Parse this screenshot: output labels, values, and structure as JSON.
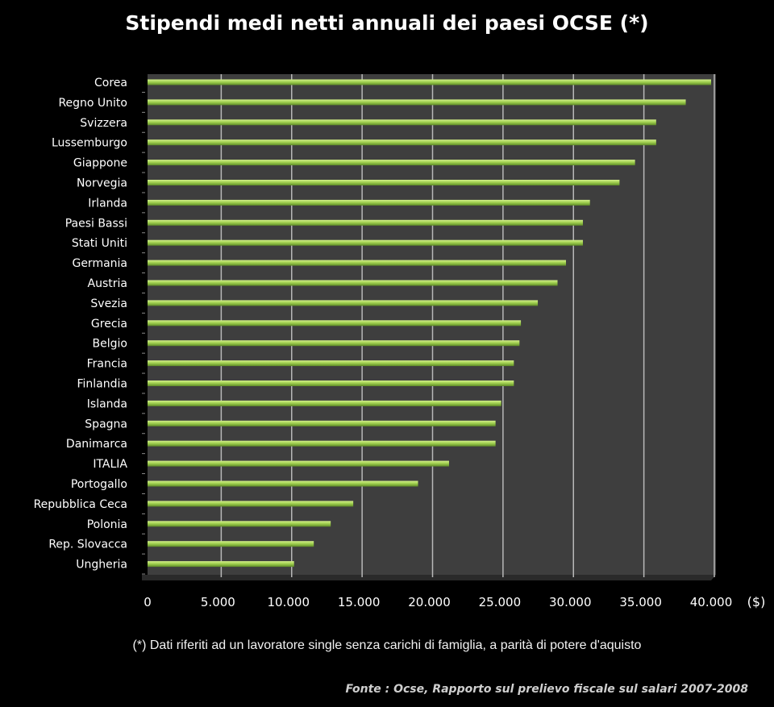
{
  "chart_data": {
    "type": "bar",
    "orientation": "horizontal",
    "title": "Stipendi medi netti annuali dei paesi OCSE  (*)",
    "unit_label": "($)",
    "categories": [
      "Corea",
      "Regno Unito",
      "Svizzera",
      "Lussemburgo",
      "Giappone",
      "Norvegia",
      "Irlanda",
      "Paesi Bassi",
      "Stati Uniti",
      "Germania",
      "Austria",
      "Svezia",
      "Grecia",
      "Belgio",
      "Francia",
      "Finlandia",
      "Islanda",
      "Spagna",
      "Danimarca",
      "ITALIA",
      "Portogallo",
      "Repubblica Ceca",
      "Polonia",
      "Rep. Slovacca",
      "Ungheria"
    ],
    "values": [
      40000,
      38200,
      36100,
      36100,
      34600,
      33500,
      31400,
      30900,
      30900,
      29700,
      29100,
      27700,
      26500,
      26400,
      26000,
      26000,
      25100,
      24700,
      24700,
      21400,
      19200,
      14600,
      13000,
      11800,
      10400
    ],
    "xlim": [
      0,
      40000
    ],
    "xticks": [
      "0",
      "5.000",
      "10.000",
      "15.000",
      "20.000",
      "25.000",
      "30.000",
      "35.000",
      "40.000"
    ],
    "grid": "vertical",
    "bar_color": "#a8d45a"
  },
  "footnote": "(*) Dati riferiti ad un lavoratore single senza carichi di famiglia, a parità di potere d'aquisto",
  "source": "Fonte : Ocse,  Rapporto sul prelievo  fiscale  sul salari 2007-2008"
}
